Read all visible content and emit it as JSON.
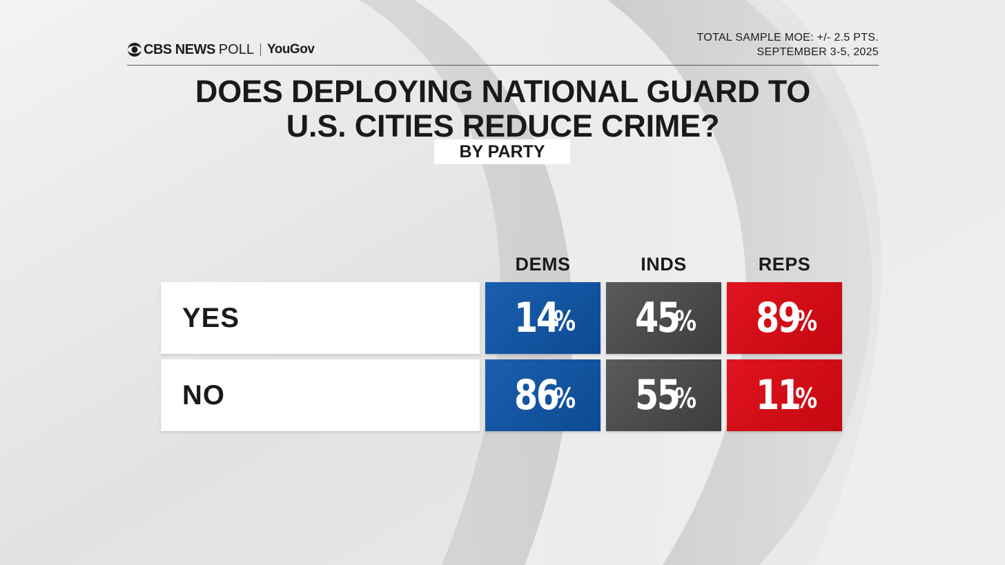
{
  "branding": {
    "cbs": "CBS NEWS",
    "poll": "POLL",
    "partner": "YouGov",
    "moe_line1": "TOTAL SAMPLE MOE: +/- 2.5 PTS.",
    "moe_line2": "SEPTEMBER 3-5, 2025"
  },
  "colors": {
    "dems": "#0d4a93",
    "inds": "#4a4a4a",
    "reps": "#d40d16"
  },
  "chart_data": {
    "type": "table",
    "title_line1": "DOES DEPLOYING NATIONAL GUARD TO",
    "title_line2": "U.S. CITIES REDUCE CRIME?",
    "subtitle": "BY PARTY",
    "columns": [
      "DEMS",
      "INDS",
      "REPS"
    ],
    "rows": [
      {
        "label": "YES",
        "values": [
          14,
          45,
          89
        ]
      },
      {
        "label": "NO",
        "values": [
          86,
          55,
          11
        ]
      }
    ],
    "unit": "%"
  }
}
